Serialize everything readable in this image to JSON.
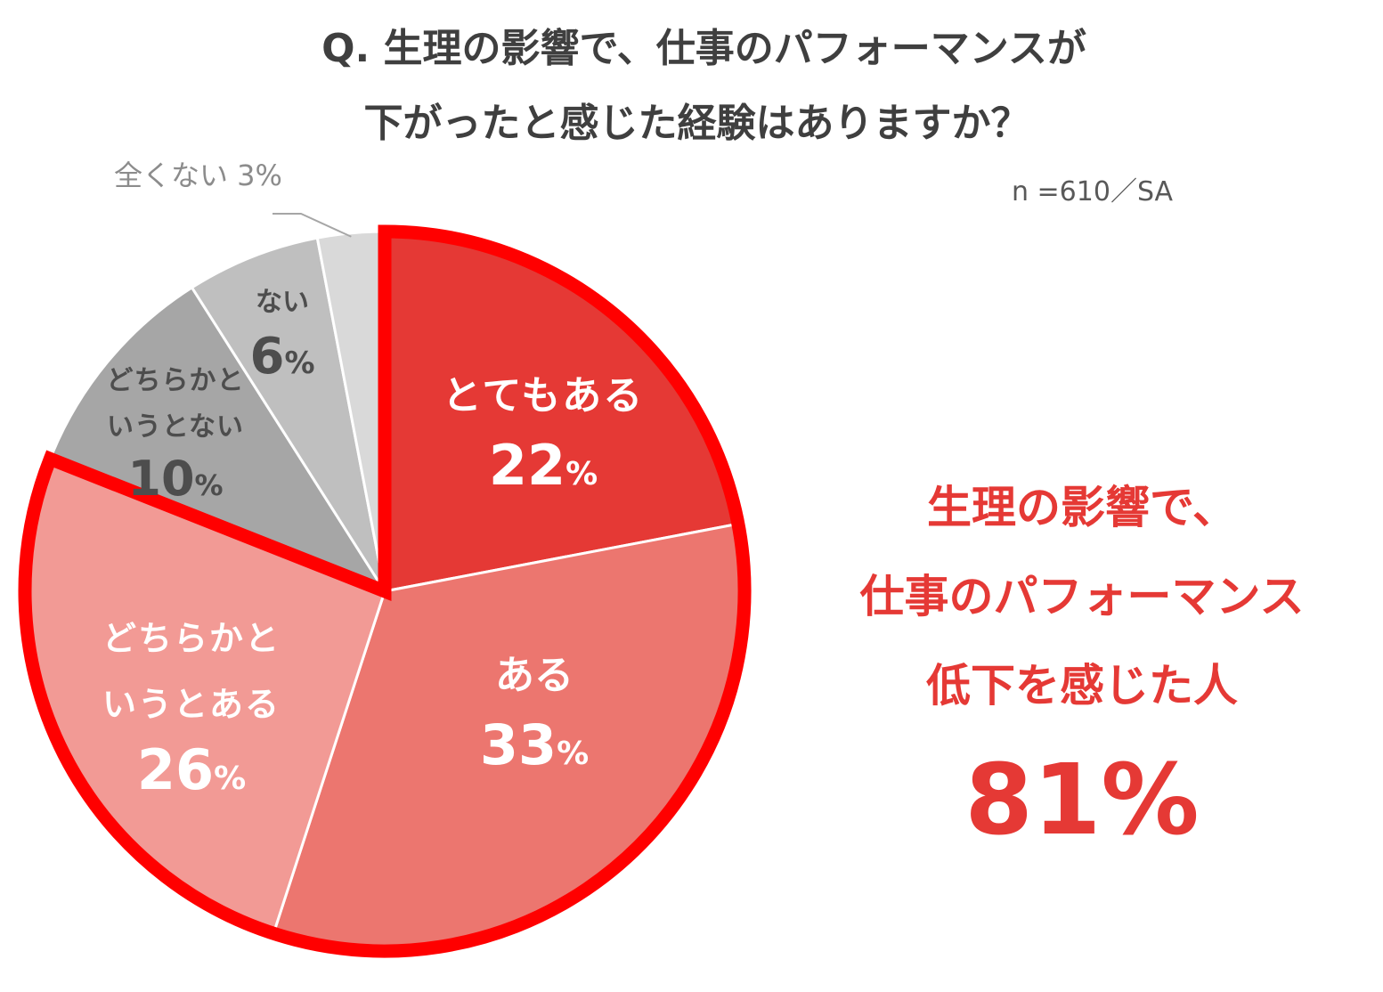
{
  "header": {
    "title_line1": "Q. 生理の影響で、仕事のパフォーマンスが",
    "title_line2": "下がったと感じた経験はありますか？",
    "sample_note": "n =610／SA"
  },
  "chart_data": {
    "type": "pie",
    "title": "Q. 生理の影響で、仕事のパフォーマンスが下がったと感じた経験はありますか？",
    "start": "12 o'clock, clockwise",
    "slices": [
      {
        "label": "とてもある",
        "value": 22,
        "color": "#e53935"
      },
      {
        "label": "ある",
        "value": 33,
        "color": "#ec766f"
      },
      {
        "label": "どちらかというとある",
        "value": 26,
        "color": "#f29a95"
      },
      {
        "label": "どちらかというとない",
        "value": 10,
        "color": "#a6a6a6"
      },
      {
        "label": "ない",
        "value": 6,
        "color": "#bfbfbf"
      },
      {
        "label": "全くない",
        "value": 3,
        "color": "#d9d9d9"
      }
    ],
    "highlight": {
      "slices": [
        "とてもある",
        "ある",
        "どちらかというとある"
      ],
      "outline_color": "#ff0000"
    },
    "labels": {
      "very": {
        "name": "とてもある",
        "pct_num": "22",
        "pct_sign": "%"
      },
      "yes": {
        "name": "ある",
        "pct_num": "33",
        "pct_sign": "%"
      },
      "some_line1": "どちらかと",
      "some_line2": "いうとある",
      "some": {
        "pct_num": "26",
        "pct_sign": "%"
      },
      "notreally_line1": "どちらかと",
      "notreally_line2": "いうとない",
      "notreally": {
        "pct_num": "10",
        "pct_sign": "%"
      },
      "no": {
        "name": "ない",
        "pct_num": "6",
        "pct_sign": "%"
      },
      "none": "全くない 3%"
    }
  },
  "callout": {
    "line1": "生理の影響で、",
    "line2": "仕事のパフォーマンス",
    "line3": "低下を感じた人",
    "value": "81%"
  }
}
